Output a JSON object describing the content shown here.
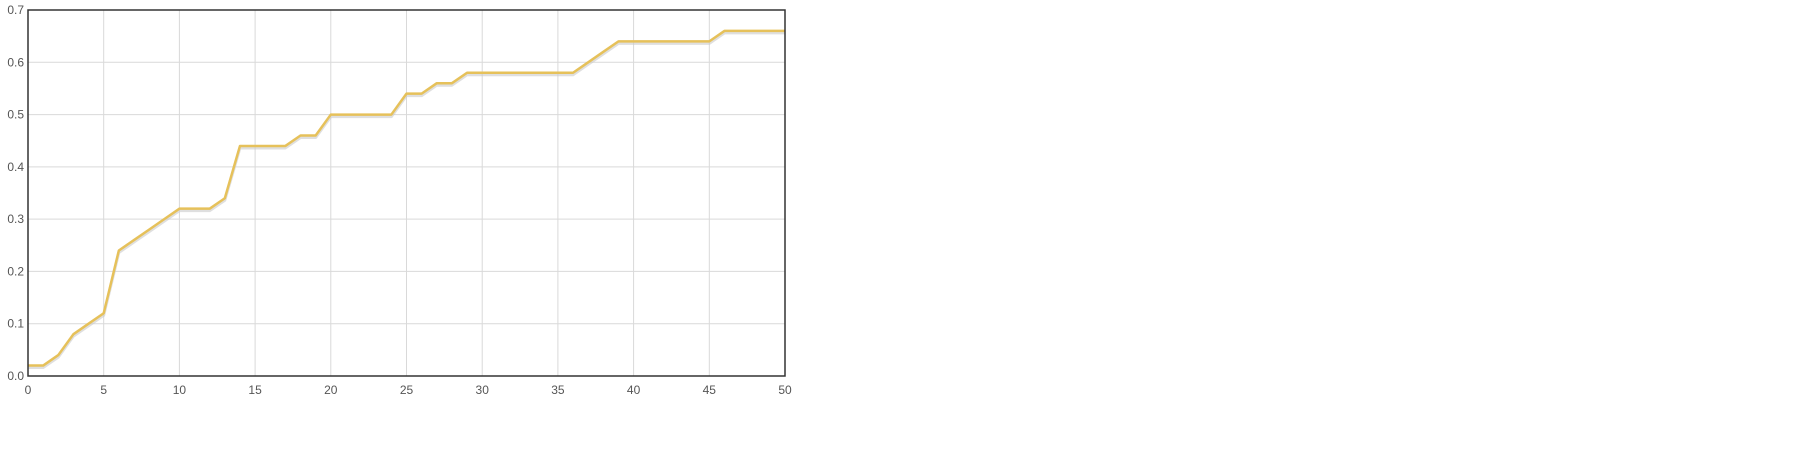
{
  "chart_data": {
    "type": "line",
    "title": "",
    "xlabel": "",
    "ylabel": "",
    "xlim": [
      0,
      50
    ],
    "ylim": [
      0,
      0.7
    ],
    "xticks": [
      0,
      5,
      10,
      15,
      20,
      25,
      30,
      35,
      40,
      45,
      50
    ],
    "xtick_labels": [
      "0",
      "5",
      "10",
      "15",
      "20",
      "25",
      "30",
      "35",
      "40",
      "45",
      "50"
    ],
    "yticks": [
      0,
      0.1,
      0.2,
      0.3,
      0.4,
      0.5,
      0.6,
      0.7
    ],
    "ytick_labels": [
      "0.0",
      "0.1",
      "0.2",
      "0.3",
      "0.4",
      "0.5",
      "0.6",
      "0.7"
    ],
    "grid": true,
    "legend": "none",
    "colors": {
      "line": "#e6c15a",
      "line_shadow": "#c9c9c9",
      "grid": "#d9d9d9",
      "frame": "#333333"
    },
    "series": [
      {
        "x": [
          0,
          1,
          2,
          3,
          4,
          5,
          6,
          7,
          8,
          9,
          10,
          11,
          12,
          13,
          14,
          15,
          16,
          17,
          18,
          19,
          20,
          21,
          22,
          23,
          24,
          25,
          26,
          27,
          28,
          29,
          30,
          31,
          32,
          33,
          34,
          35,
          36,
          37,
          38,
          39,
          40,
          41,
          42,
          43,
          44,
          45,
          46,
          47,
          48,
          49,
          50
        ],
        "values": [
          0.02,
          0.02,
          0.04,
          0.08,
          0.1,
          0.12,
          0.24,
          0.26,
          0.28,
          0.3,
          0.32,
          0.32,
          0.32,
          0.34,
          0.44,
          0.44,
          0.44,
          0.44,
          0.46,
          0.46,
          0.5,
          0.5,
          0.5,
          0.5,
          0.5,
          0.54,
          0.54,
          0.56,
          0.56,
          0.58,
          0.58,
          0.58,
          0.58,
          0.58,
          0.58,
          0.58,
          0.58,
          0.6,
          0.62,
          0.64,
          0.64,
          0.64,
          0.64,
          0.64,
          0.64,
          0.64,
          0.66,
          0.66,
          0.66,
          0.66,
          0.66
        ]
      }
    ]
  }
}
